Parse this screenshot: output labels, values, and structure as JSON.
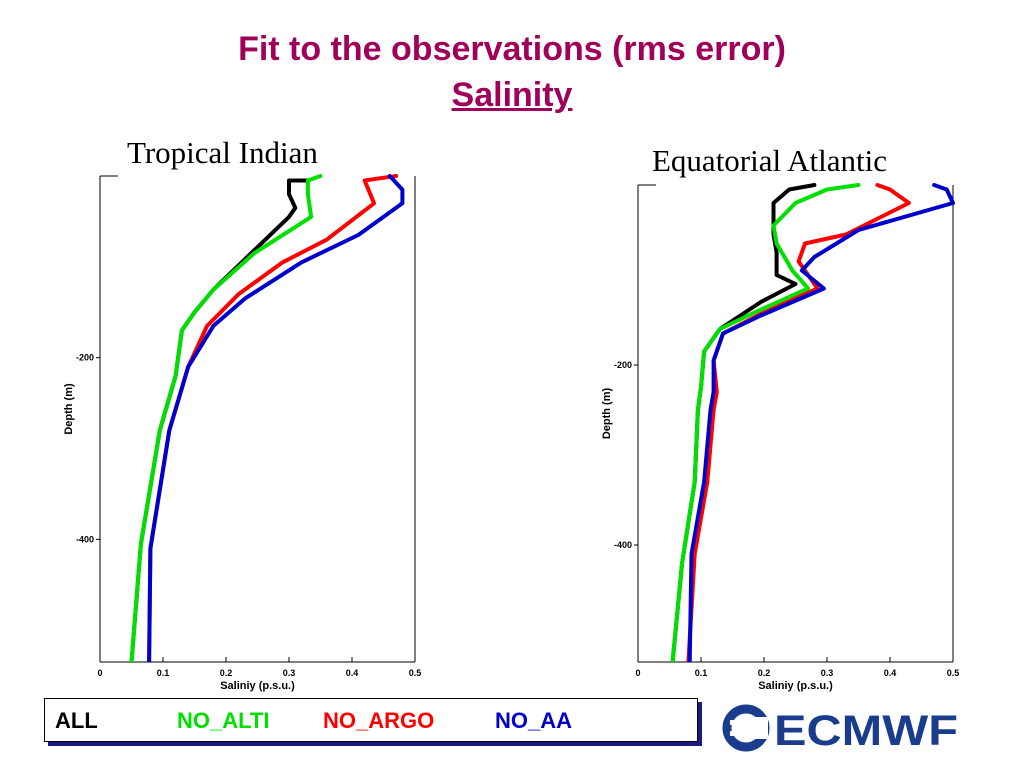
{
  "header": {
    "title": "Fit to the observations (rms error)",
    "subtitle": "Salinity"
  },
  "legend": {
    "items": [
      {
        "label": "ALL",
        "color": "#000000"
      },
      {
        "label": "NO_ALTI",
        "color": "#00e000"
      },
      {
        "label": "NO_ARGO",
        "color": "#ff0000"
      },
      {
        "label": "NO_AA",
        "color": "#0000cc"
      }
    ]
  },
  "logo": {
    "text": "ECMWF",
    "color": "#1a3c8c"
  },
  "chart_data": [
    {
      "type": "line",
      "title": "Tropical Indian",
      "xlabel": "Saliniy (p.s.u.)",
      "ylabel": "Depth (m)",
      "xlim": [
        0,
        0.5
      ],
      "ylim": [
        -535,
        0
      ],
      "xticks": [
        "0",
        "0.1",
        "0.2",
        "0.3",
        "0.4",
        "0.5"
      ],
      "yticks": [
        "-200",
        "-400"
      ],
      "series": [
        {
          "name": "ALL",
          "color": "#000000",
          "points": [
            [
              0.33,
              -5
            ],
            [
              0.3,
              -5
            ],
            [
              0.3,
              -20
            ],
            [
              0.31,
              -35
            ],
            [
              0.3,
              -45
            ],
            [
              0.24,
              -85
            ],
            [
              0.18,
              -125
            ],
            [
              0.15,
              -150
            ],
            [
              0.13,
              -170
            ],
            [
              0.12,
              -220
            ],
            [
              0.095,
              -280
            ],
            [
              0.065,
              -405
            ],
            [
              0.05,
              -535
            ]
          ]
        },
        {
          "name": "NO_ALTI",
          "color": "#00e000",
          "points": [
            [
              0.35,
              0
            ],
            [
              0.33,
              -5
            ],
            [
              0.33,
              -20
            ],
            [
              0.335,
              -45
            ],
            [
              0.245,
              -85
            ],
            [
              0.18,
              -125
            ],
            [
              0.15,
              -150
            ],
            [
              0.13,
              -170
            ],
            [
              0.12,
              -220
            ],
            [
              0.095,
              -280
            ],
            [
              0.065,
              -405
            ],
            [
              0.05,
              -535
            ]
          ]
        },
        {
          "name": "NO_ARGO",
          "color": "#ff0000",
          "points": [
            [
              0.47,
              0
            ],
            [
              0.42,
              -5
            ],
            [
              0.435,
              -30
            ],
            [
              0.36,
              -70
            ],
            [
              0.29,
              -95
            ],
            [
              0.22,
              -130
            ],
            [
              0.17,
              -165
            ],
            [
              0.14,
              -210
            ],
            [
              0.11,
              -280
            ],
            [
              0.08,
              -410
            ],
            [
              0.078,
              -535
            ]
          ]
        },
        {
          "name": "NO_AA",
          "color": "#0000cc",
          "points": [
            [
              0.46,
              0
            ],
            [
              0.48,
              -15
            ],
            [
              0.48,
              -30
            ],
            [
              0.41,
              -65
            ],
            [
              0.32,
              -95
            ],
            [
              0.23,
              -135
            ],
            [
              0.18,
              -165
            ],
            [
              0.14,
              -210
            ],
            [
              0.11,
              -280
            ],
            [
              0.08,
              -410
            ],
            [
              0.078,
              -535
            ]
          ]
        }
      ]
    },
    {
      "type": "line",
      "title": "Equatorial Atlantic",
      "xlabel": "Saliniy (p.s.u.)",
      "ylabel": "Depth (m)",
      "xlim": [
        0,
        0.5
      ],
      "ylim": [
        -530,
        0
      ],
      "xticks": [
        "0",
        "0.1",
        "0.2",
        "0.3",
        "0.4",
        "0.5"
      ],
      "yticks": [
        "-200",
        "-400"
      ],
      "series": [
        {
          "name": "ALL",
          "color": "#000000",
          "points": [
            [
              0.28,
              0
            ],
            [
              0.28,
              0
            ],
            [
              0.24,
              -5
            ],
            [
              0.215,
              -20
            ],
            [
              0.215,
              -35
            ],
            [
              0.215,
              -55
            ],
            [
              0.22,
              -75
            ],
            [
              0.22,
              -100
            ],
            [
              0.25,
              -110
            ],
            [
              0.195,
              -130
            ],
            [
              0.13,
              -160
            ],
            [
              0.105,
              -185
            ],
            [
              0.1,
              -225
            ],
            [
              0.095,
              -250
            ],
            [
              0.09,
              -330
            ],
            [
              0.07,
              -420
            ],
            [
              0.055,
              -530
            ]
          ]
        },
        {
          "name": "NO_ALTI",
          "color": "#00e000",
          "points": [
            [
              0.35,
              0
            ],
            [
              0.3,
              -5
            ],
            [
              0.25,
              -20
            ],
            [
              0.215,
              -45
            ],
            [
              0.22,
              -65
            ],
            [
              0.245,
              -95
            ],
            [
              0.27,
              -115
            ],
            [
              0.19,
              -140
            ],
            [
              0.13,
              -160
            ],
            [
              0.105,
              -185
            ],
            [
              0.1,
              -225
            ],
            [
              0.095,
              -250
            ],
            [
              0.09,
              -330
            ],
            [
              0.07,
              -420
            ],
            [
              0.055,
              -530
            ]
          ]
        },
        {
          "name": "NO_ARGO",
          "color": "#ff0000",
          "points": [
            [
              0.38,
              0
            ],
            [
              0.4,
              -5
            ],
            [
              0.43,
              -20
            ],
            [
              0.33,
              -55
            ],
            [
              0.265,
              -65
            ],
            [
              0.255,
              -85
            ],
            [
              0.285,
              -115
            ],
            [
              0.19,
              -145
            ],
            [
              0.135,
              -165
            ],
            [
              0.12,
              -195
            ],
            [
              0.125,
              -230
            ],
            [
              0.12,
              -250
            ],
            [
              0.11,
              -330
            ],
            [
              0.09,
              -410
            ],
            [
              0.08,
              -530
            ]
          ]
        },
        {
          "name": "NO_AA",
          "color": "#0000cc",
          "points": [
            [
              0.47,
              0
            ],
            [
              0.49,
              -5
            ],
            [
              0.5,
              -20
            ],
            [
              0.35,
              -50
            ],
            [
              0.28,
              -80
            ],
            [
              0.26,
              -95
            ],
            [
              0.295,
              -115
            ],
            [
              0.195,
              -145
            ],
            [
              0.135,
              -165
            ],
            [
              0.12,
              -195
            ],
            [
              0.12,
              -230
            ],
            [
              0.115,
              -250
            ],
            [
              0.105,
              -330
            ],
            [
              0.085,
              -410
            ],
            [
              0.082,
              -530
            ]
          ]
        }
      ]
    }
  ]
}
